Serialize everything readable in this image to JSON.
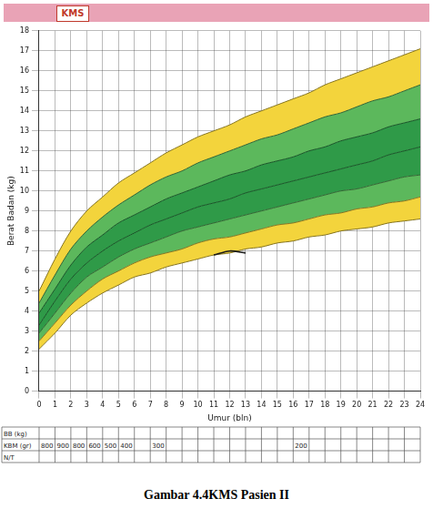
{
  "header": {
    "title": "KMS"
  },
  "caption": "Gambar 4.4KMS Pasien II",
  "chart_data": {
    "type": "line",
    "y_label": "Berat Badan (kg)",
    "x_label": "Umur (bln)",
    "x": [
      0,
      1,
      2,
      3,
      4,
      5,
      6,
      7,
      8,
      9,
      10,
      11,
      12,
      13,
      14,
      15,
      16,
      17,
      18,
      19,
      20,
      21,
      22,
      23,
      24
    ],
    "xlim": [
      0,
      24
    ],
    "xticks": [
      0,
      1,
      2,
      3,
      4,
      5,
      6,
      7,
      8,
      9,
      10,
      11,
      12,
      13,
      14,
      15,
      16,
      17,
      18,
      19,
      20,
      21,
      22,
      23,
      24
    ],
    "ylim": [
      0,
      18
    ],
    "yticks": [
      0,
      1,
      2,
      3,
      4,
      5,
      6,
      7,
      8,
      9,
      10,
      11,
      12,
      13,
      14,
      15,
      16,
      17,
      18
    ],
    "grid": true,
    "series": [
      {
        "type": "area",
        "color": "#f3d43c",
        "values": [
          2.1,
          2.9,
          3.8,
          4.4,
          4.9,
          5.3,
          5.7,
          5.9,
          6.2,
          6.4,
          6.6,
          6.8,
          6.9,
          7.1,
          7.2,
          7.4,
          7.5,
          7.7,
          7.8,
          8.0,
          8.1,
          8.2,
          8.4,
          8.5,
          8.6
        ]
      },
      {
        "type": "area",
        "color": "#f3d43c",
        "values": [
          2.5,
          3.4,
          4.3,
          5.0,
          5.6,
          6.0,
          6.4,
          6.7,
          6.9,
          7.1,
          7.4,
          7.6,
          7.7,
          7.9,
          8.1,
          8.3,
          8.4,
          8.6,
          8.8,
          8.9,
          9.1,
          9.2,
          9.4,
          9.5,
          9.7
        ]
      },
      {
        "type": "area",
        "color": "#5cb85c",
        "values": [
          2.9,
          3.9,
          4.9,
          5.7,
          6.2,
          6.7,
          7.1,
          7.4,
          7.7,
          8.0,
          8.2,
          8.4,
          8.6,
          8.8,
          9.0,
          9.2,
          9.4,
          9.6,
          9.8,
          10.0,
          10.1,
          10.3,
          10.5,
          10.7,
          10.8
        ]
      },
      {
        "type": "area",
        "color": "#2f9a48",
        "values": [
          3.3,
          4.5,
          5.6,
          6.4,
          7.0,
          7.5,
          7.9,
          8.3,
          8.6,
          8.9,
          9.2,
          9.4,
          9.6,
          9.9,
          10.1,
          10.3,
          10.5,
          10.7,
          10.9,
          11.1,
          11.3,
          11.5,
          11.8,
          12.0,
          12.2
        ]
      },
      {
        "type": "area",
        "color": "#2f9a48",
        "values": [
          3.9,
          5.1,
          6.3,
          7.2,
          7.8,
          8.4,
          8.8,
          9.2,
          9.6,
          9.9,
          10.2,
          10.5,
          10.8,
          11.0,
          11.3,
          11.5,
          11.7,
          12.0,
          12.2,
          12.5,
          12.7,
          12.9,
          13.2,
          13.4,
          13.6
        ]
      },
      {
        "type": "area",
        "color": "#5cb85c",
        "values": [
          4.4,
          5.8,
          7.1,
          8.0,
          8.7,
          9.3,
          9.8,
          10.3,
          10.7,
          11.0,
          11.4,
          11.7,
          12.0,
          12.3,
          12.6,
          12.8,
          13.1,
          13.4,
          13.7,
          13.9,
          14.2,
          14.5,
          14.7,
          15.0,
          15.3
        ]
      },
      {
        "type": "area",
        "color": "#f3d43c",
        "values": [
          5.0,
          6.6,
          8.0,
          9.0,
          9.7,
          10.4,
          10.9,
          11.4,
          11.9,
          12.3,
          12.7,
          13.0,
          13.3,
          13.7,
          14.0,
          14.3,
          14.6,
          14.9,
          15.3,
          15.6,
          15.9,
          16.2,
          16.5,
          16.8,
          17.1
        ]
      },
      {
        "type": "line",
        "color": "#1a1a1a",
        "line_style": "solid",
        "marker": "none",
        "values": [
          null,
          null,
          null,
          null,
          null,
          null,
          null,
          null,
          null,
          null,
          null,
          6.8,
          7.0,
          6.9,
          null,
          null,
          null,
          null,
          null,
          null,
          null,
          null,
          null,
          null,
          null
        ]
      }
    ]
  },
  "table": {
    "rows": [
      {
        "label": "BB (kg)"
      },
      {
        "label": "KBM (gr)",
        "months": [
          1,
          2,
          3,
          4,
          5,
          6,
          8,
          17
        ],
        "values": [
          800,
          900,
          800,
          600,
          500,
          400,
          300,
          200
        ]
      },
      {
        "label": "N/T"
      }
    ]
  }
}
